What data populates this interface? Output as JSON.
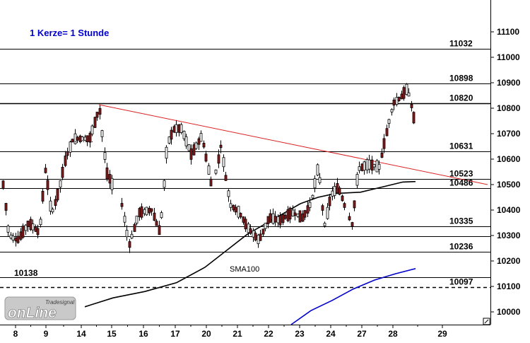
{
  "chart_data": {
    "type": "candlestick",
    "note": "1 Kerze= 1 Stunde",
    "low_label": "10138",
    "sma_label": "SMA100",
    "logo": {
      "small": "Tradesignal",
      "big": "onLine"
    },
    "y_ticks": [
      10000,
      10100,
      10200,
      10300,
      10400,
      10500,
      10600,
      10700,
      10800,
      10900,
      11000,
      11100
    ],
    "x_ticks": [
      "8",
      "9",
      "14",
      "15",
      "16",
      "17",
      "20",
      "21",
      "22",
      "23",
      "24",
      "27",
      "28",
      "29"
    ],
    "levels": [
      {
        "value": 11032,
        "label": "11032",
        "style": "solid"
      },
      {
        "value": 10898,
        "label": "10898",
        "style": "solid"
      },
      {
        "value": 10820,
        "label": "10820",
        "style": "solid-thick"
      },
      {
        "value": 10631,
        "label": "10631",
        "style": "solid"
      },
      {
        "value": 10523,
        "label": "10523",
        "style": "solid"
      },
      {
        "value": 10486,
        "label": "10486",
        "style": "solid"
      },
      {
        "value": 10335,
        "label": "10335",
        "style": "solid"
      },
      {
        "value": 10297,
        "label": "",
        "style": "solid"
      },
      {
        "value": 10236,
        "label": "10236",
        "style": "solid"
      },
      {
        "value": 10135,
        "label": "",
        "style": "solid"
      },
      {
        "value": 10097,
        "label": "10097",
        "style": "dashed"
      }
    ],
    "ylim": [
      9950,
      11225
    ],
    "colors": {
      "up": "#ffffff",
      "down": "#8b1a1a",
      "sma_black": "#000000",
      "sma_blue": "#0000cc",
      "trend": "#dd2222"
    }
  }
}
